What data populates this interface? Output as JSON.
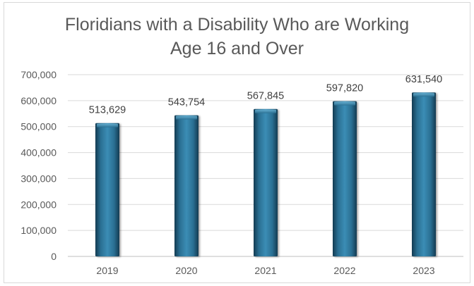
{
  "chart_data": {
    "type": "bar",
    "title_lines": [
      "Floridians with a Disability Who are Working",
      "Age 16 and Over"
    ],
    "xlabel": "",
    "ylabel": "",
    "categories": [
      "2019",
      "2020",
      "2021",
      "2022",
      "2023"
    ],
    "values": [
      513629,
      543754,
      567845,
      597820,
      631540
    ],
    "data_labels": [
      "513,629",
      "543,754",
      "567,845",
      "597,820",
      "631,540"
    ],
    "ylim": [
      0,
      700000
    ],
    "yticks": [
      0,
      100000,
      200000,
      300000,
      400000,
      500000,
      600000,
      700000
    ],
    "ytick_labels": [
      "0",
      "100,000",
      "200,000",
      "300,000",
      "400,000",
      "500,000",
      "600,000",
      "700,000"
    ],
    "grid": true,
    "legend": "none",
    "colors": {
      "bar_dark": "#1b4a64",
      "bar_mid": "#2f7ea3",
      "bar_light": "#5aa6c9",
      "gridline": "#d9d9d9",
      "axis": "#bfbfbf"
    }
  }
}
